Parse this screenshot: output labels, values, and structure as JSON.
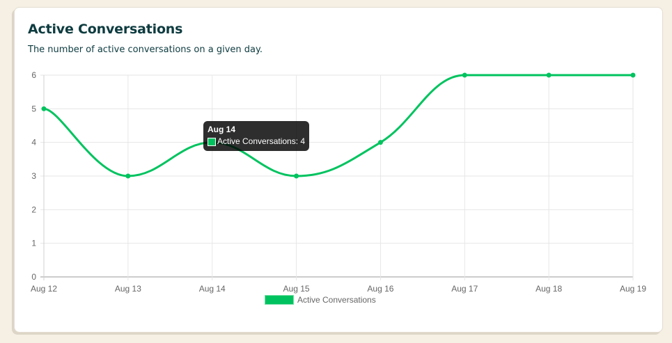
{
  "card": {
    "title": "Active Conversations",
    "subtitle": "The number of active conversations on a given day."
  },
  "tooltip": {
    "title": "Aug 14",
    "label": "Active Conversations: 4"
  },
  "legend": {
    "label": "Active Conversations",
    "color": "#00c35f"
  },
  "colors": {
    "line": "#00c35f",
    "grid": "#e6e6e6",
    "axis": "#999999",
    "title": "#0d3b3f",
    "background": "#f5efe4"
  },
  "chart_data": {
    "type": "line",
    "title": "Active Conversations",
    "subtitle": "The number of active conversations on a given day.",
    "categories": [
      "Aug 12",
      "Aug 13",
      "Aug 14",
      "Aug 15",
      "Aug 16",
      "Aug 17",
      "Aug 18",
      "Aug 19"
    ],
    "series": [
      {
        "name": "Active Conversations",
        "values": [
          5,
          3,
          4,
          3,
          4,
          6,
          6,
          6
        ],
        "color": "#00c35f"
      }
    ],
    "xlabel": "",
    "ylabel": "",
    "ylim": [
      0,
      6
    ],
    "yticks": [
      0,
      1,
      2,
      3,
      4,
      5,
      6
    ],
    "grid": true,
    "legend_position": "bottom",
    "curve": "smooth",
    "active_tooltip": {
      "category": "Aug 14",
      "text": "Active Conversations: 4"
    }
  }
}
